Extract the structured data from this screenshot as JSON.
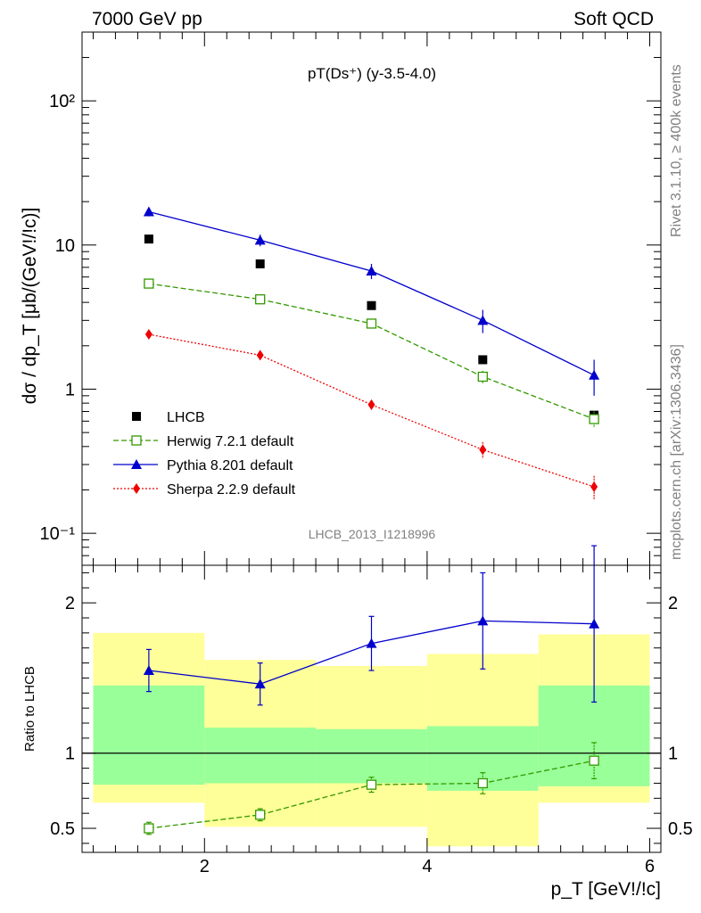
{
  "header": {
    "left_label": "7000 GeV pp",
    "right_label": "Soft QCD"
  },
  "side_labels": {
    "rivet": "Rivet 3.1.10, ≥ 400k events",
    "source": "mcplots.cern.ch [arXiv:1306.3436]"
  },
  "chart_data": [
    {
      "type": "scatter",
      "title": "pT(Ds⁺) (y-3.5-4.0)",
      "ylabel": "dσ / dp_T [μb/(GeV!/!c)]",
      "xlabel": "p_T [GeV!/!c]",
      "yscale": "log",
      "xlim": [
        0.9,
        6.1
      ],
      "ylim": [
        0.06,
        300
      ],
      "y_tick_labels": [
        "10⁻¹",
        "1",
        "10",
        "10²"
      ],
      "watermark": "LHCB_2013_I1218996",
      "legend_position": "bottom-left",
      "x": [
        1.5,
        2.5,
        3.5,
        4.5,
        5.5
      ],
      "series": [
        {
          "name": "LHCB",
          "color": "#000000",
          "style": "square-filled",
          "values": [
            11.0,
            7.4,
            3.8,
            1.6,
            0.66
          ]
        },
        {
          "name": "Herwig 7.2.1 default",
          "color": "#339900",
          "style": "dashed-open-square",
          "values": [
            5.4,
            4.2,
            2.85,
            1.22,
            0.62
          ],
          "errors": [
            0.2,
            0.2,
            0.15,
            0.12,
            0.08
          ]
        },
        {
          "name": "Pythia 8.201 default",
          "color": "#0000cc",
          "style": "solid-triangle",
          "values": [
            17.0,
            10.8,
            6.6,
            3.0,
            1.25
          ],
          "errors": [
            1.2,
            1.0,
            0.8,
            0.55,
            0.35
          ]
        },
        {
          "name": "Sherpa 2.2.9 default",
          "color": "#ee0000",
          "style": "dotted-diamond",
          "values": [
            2.4,
            1.72,
            0.78,
            0.38,
            0.21
          ],
          "errors": [
            0.1,
            0.08,
            0.06,
            0.05,
            0.04
          ]
        }
      ]
    },
    {
      "type": "scatter",
      "ylabel": "Ratio to LHCB",
      "xlabel": "p_T [GeV!/!c]",
      "xlim": [
        0.9,
        6.1
      ],
      "ylim": [
        0.34,
        2.25
      ],
      "x_ticks": [
        2,
        4,
        6
      ],
      "y_ticks": [
        0.5,
        1,
        2
      ],
      "bins": [
        [
          1,
          2
        ],
        [
          2,
          3
        ],
        [
          3,
          4
        ],
        [
          4,
          5
        ],
        [
          5,
          6
        ]
      ],
      "band_outer": [
        [
          0.67,
          1.8
        ],
        [
          0.51,
          1.62
        ],
        [
          0.51,
          1.58
        ],
        [
          0.38,
          1.66
        ],
        [
          0.67,
          1.79
        ]
      ],
      "band_inner": [
        [
          0.79,
          1.45
        ],
        [
          0.8,
          1.17
        ],
        [
          0.8,
          1.16
        ],
        [
          0.75,
          1.18
        ],
        [
          0.78,
          1.45
        ]
      ],
      "x": [
        1.5,
        2.5,
        3.5,
        4.5,
        5.5
      ],
      "series": [
        {
          "name": "Herwig 7.2.1 default",
          "color": "#339900",
          "values": [
            0.5,
            0.59,
            0.79,
            0.8,
            0.95
          ],
          "errors": [
            0.04,
            0.04,
            0.05,
            0.07,
            0.12
          ]
        },
        {
          "name": "Pythia 8.201 default",
          "color": "#0000cc",
          "values": [
            1.55,
            1.46,
            1.73,
            1.88,
            1.86
          ],
          "errors": [
            0.14,
            0.14,
            0.18,
            0.32,
            0.52
          ]
        }
      ]
    }
  ]
}
